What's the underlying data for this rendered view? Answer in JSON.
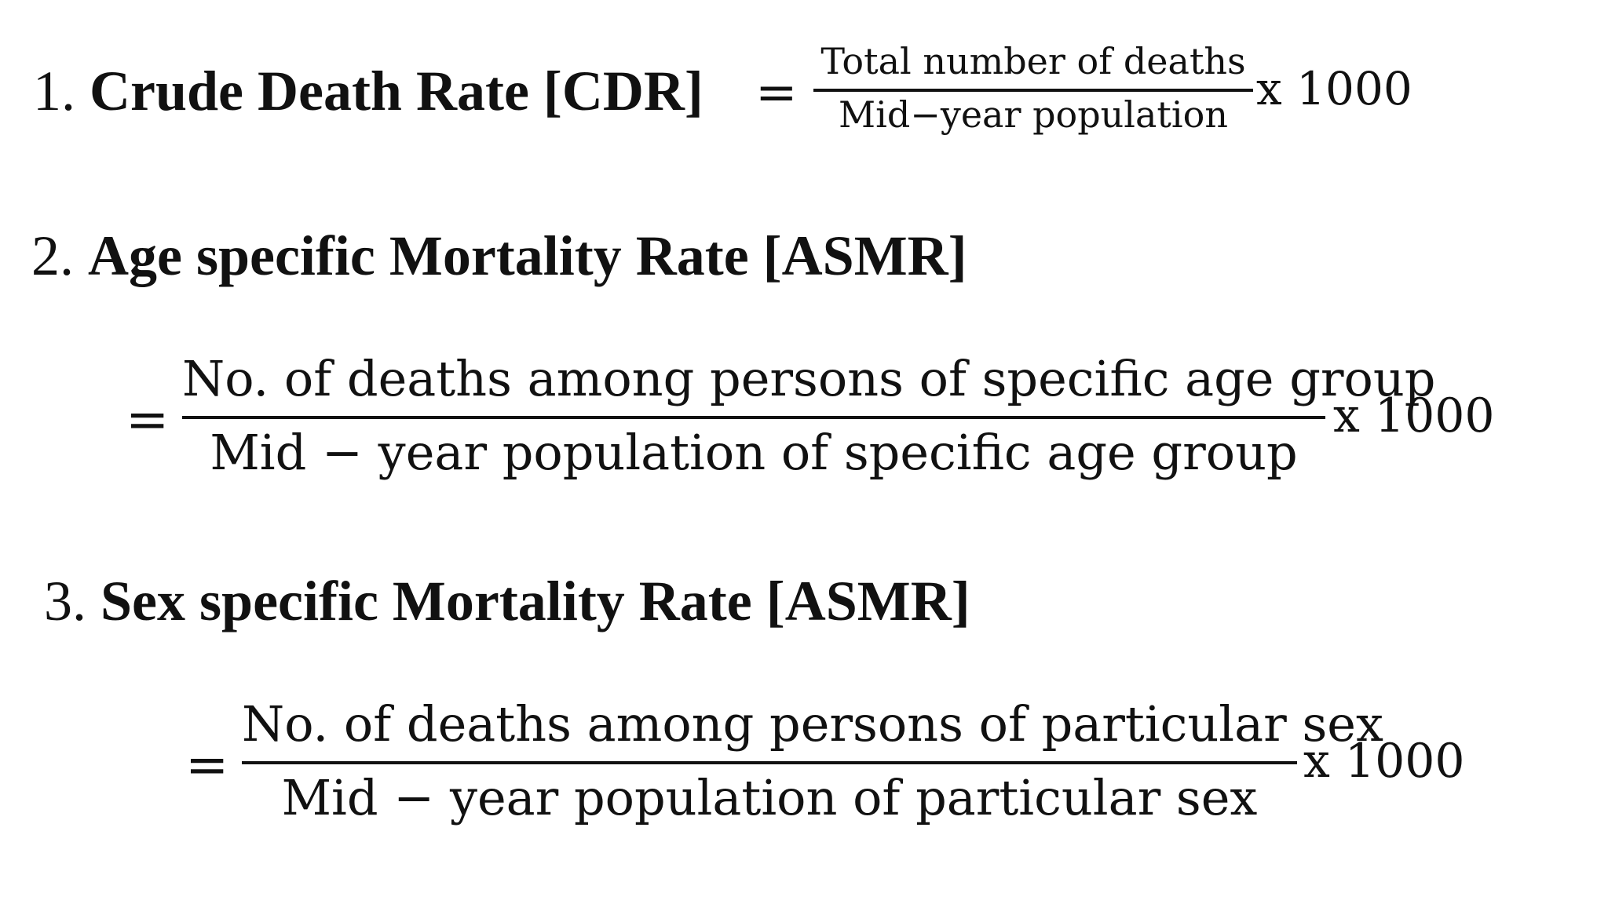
{
  "items": [
    {
      "number": "1.",
      "title": "Crude Death Rate [CDR]",
      "equals": "=",
      "numerator": "Total number of deaths",
      "denominator": "Mid−year population",
      "multiplier": "x 1000"
    },
    {
      "number": "2.",
      "title": "Age specific Mortality Rate [ASMR]",
      "equals": "=",
      "numerator": "No. of deaths among persons of specific age group",
      "denominator": "Mid − year population of specific age group",
      "multiplier": "x 1000"
    },
    {
      "number": "3.",
      "title": "Sex specific Mortality Rate [ASMR]",
      "equals": "=",
      "numerator": "No. of deaths among persons of particular sex",
      "denominator": "Mid − year population of particular sex",
      "multiplier": "x 1000"
    }
  ]
}
